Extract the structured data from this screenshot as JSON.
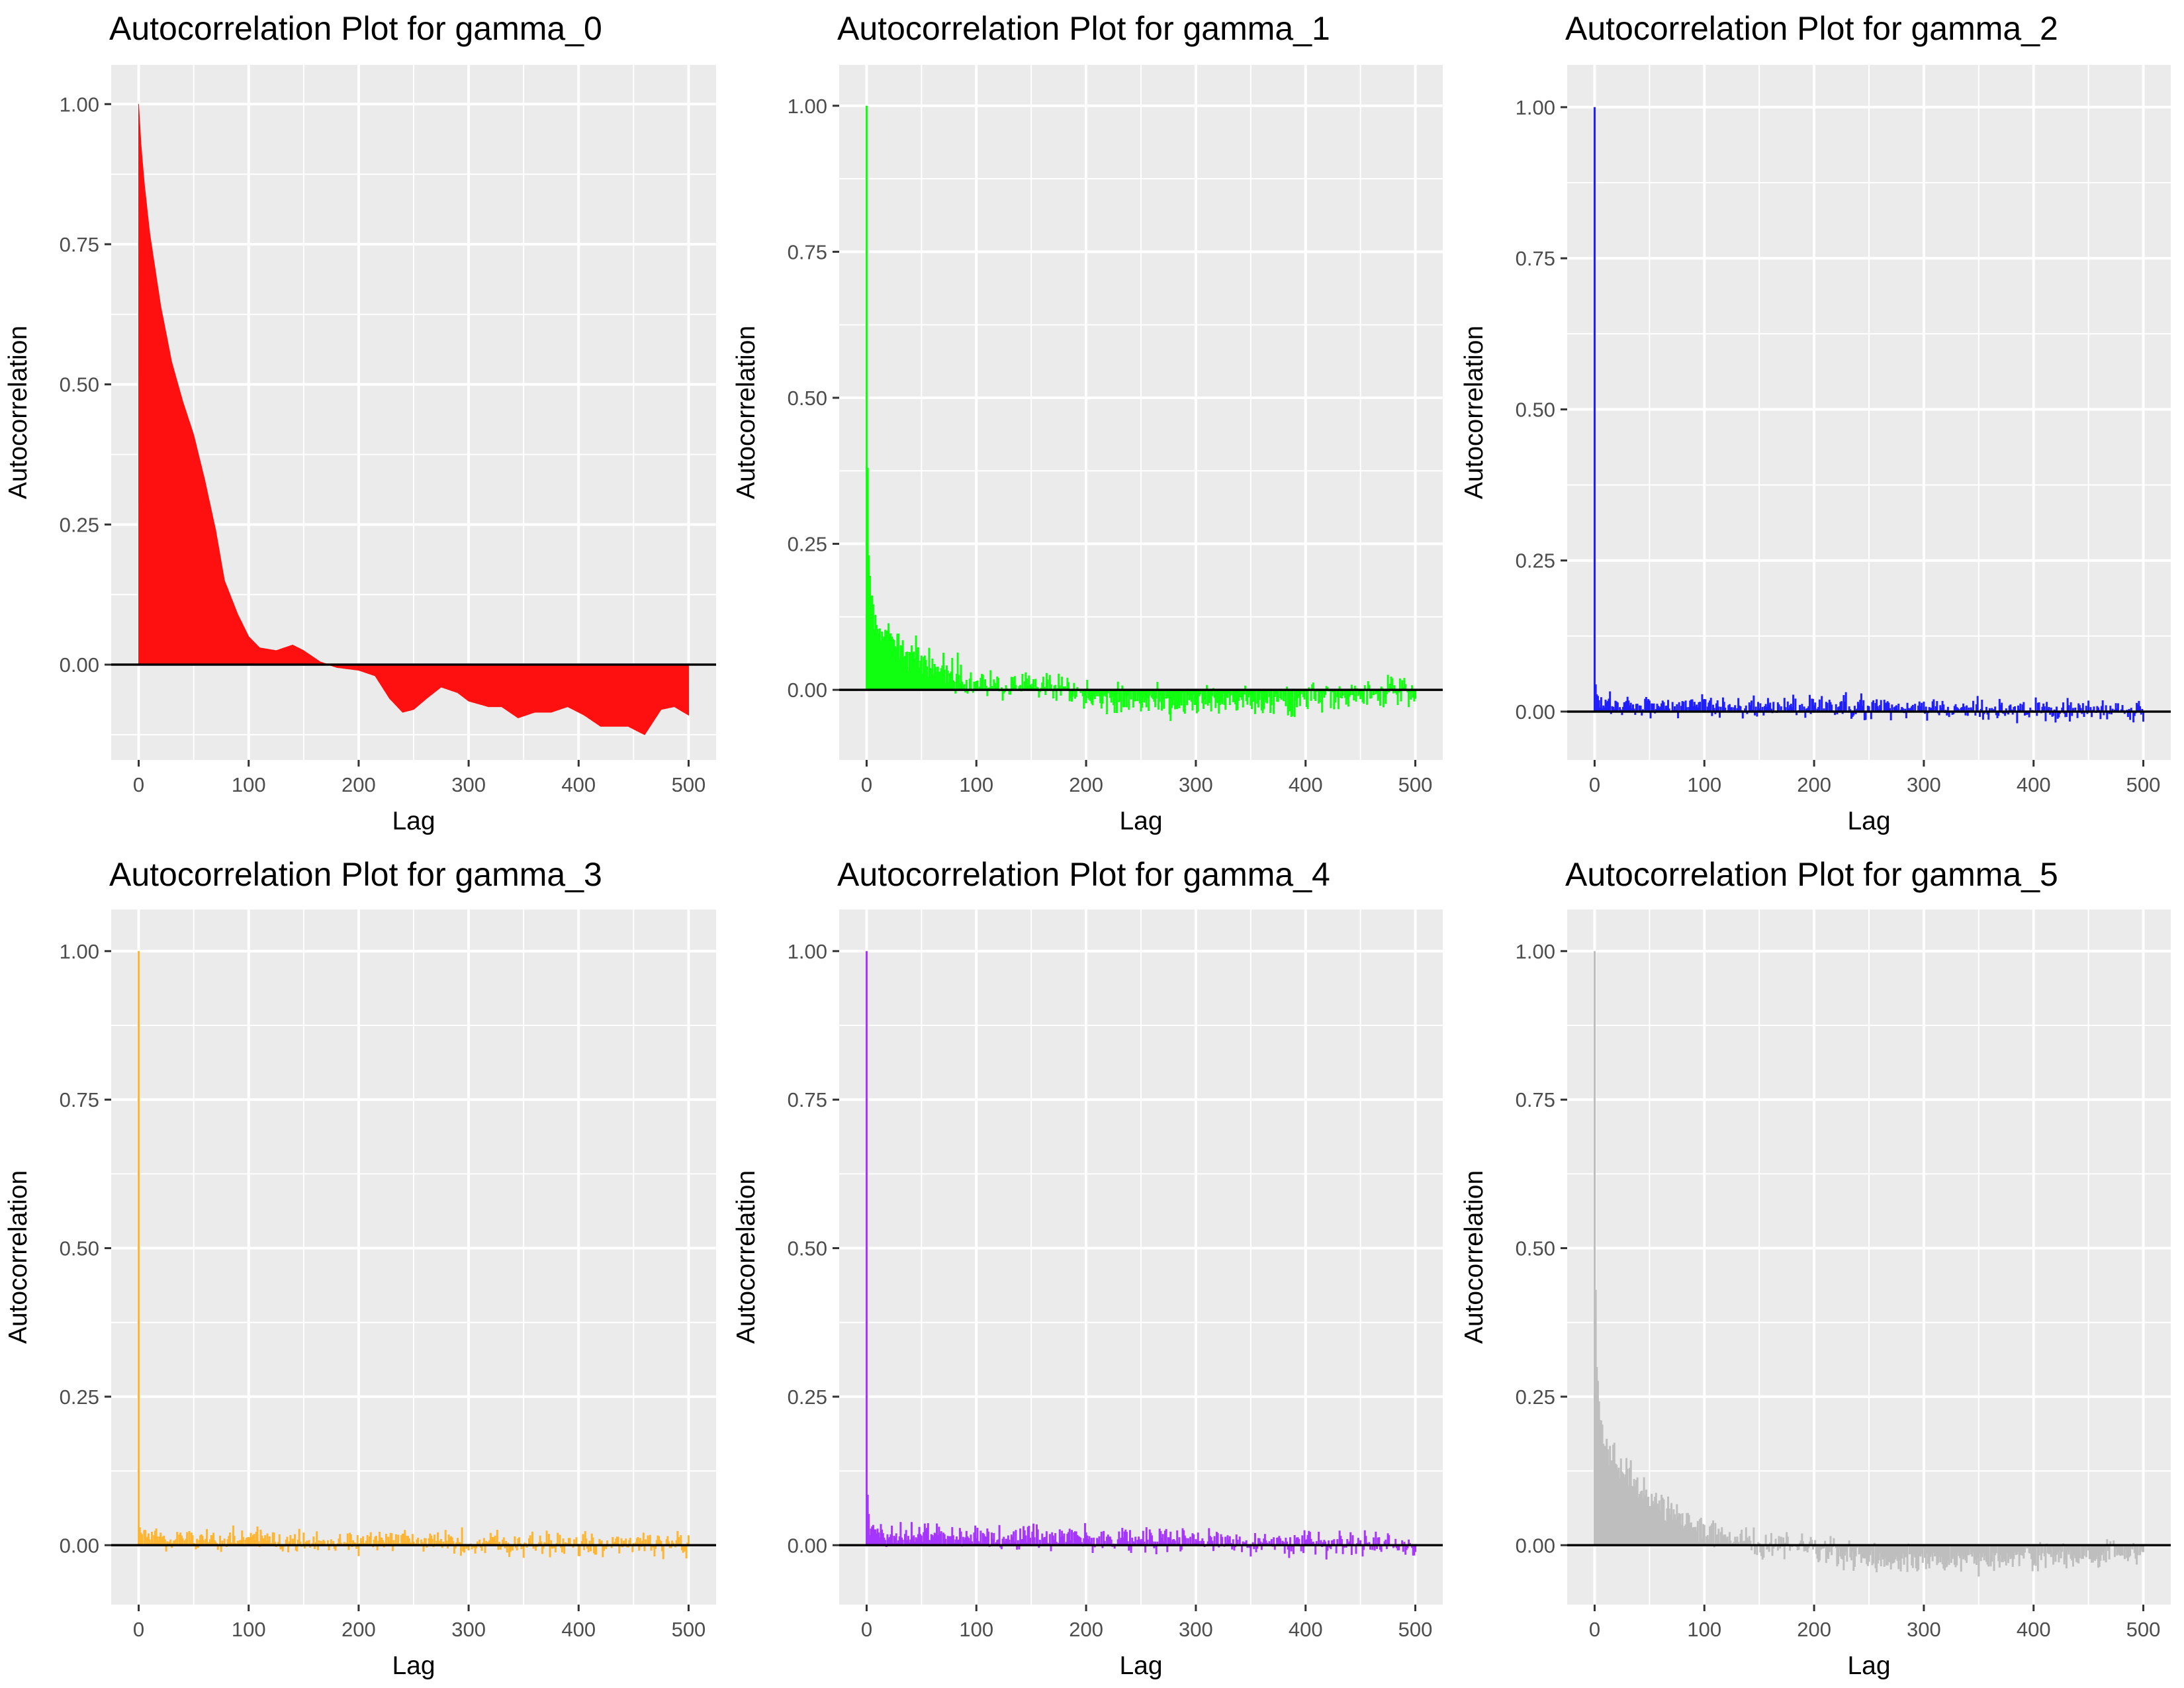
{
  "chart_data": [
    {
      "type": "bar",
      "title": "Autocorrelation Plot for gamma_0",
      "xlabel": "Lag",
      "ylabel": "Autocorrelation",
      "color": "#FF1010",
      "pattern": "smooth",
      "xlim": [
        -25,
        525
      ],
      "ylim": [
        -0.17,
        1.07
      ],
      "xticks": [
        0,
        100,
        200,
        300,
        400,
        500
      ],
      "yticks": [
        0,
        0.25,
        0.5,
        0.75,
        1
      ],
      "ytick_labels": [
        "0.00",
        "0.25",
        "0.50",
        "0.75",
        "1.00"
      ],
      "profile": [
        [
          0,
          1.0
        ],
        [
          2,
          0.93
        ],
        [
          5,
          0.86
        ],
        [
          10,
          0.77
        ],
        [
          20,
          0.64
        ],
        [
          30,
          0.54
        ],
        [
          40,
          0.47
        ],
        [
          50,
          0.41
        ],
        [
          60,
          0.33
        ],
        [
          70,
          0.24
        ],
        [
          78,
          0.15
        ],
        [
          90,
          0.09
        ],
        [
          100,
          0.05
        ],
        [
          110,
          0.03
        ],
        [
          125,
          0.025
        ],
        [
          140,
          0.035
        ],
        [
          150,
          0.025
        ],
        [
          165,
          0.005
        ],
        [
          180,
          -0.005
        ],
        [
          200,
          -0.01
        ],
        [
          215,
          -0.02
        ],
        [
          228,
          -0.06
        ],
        [
          240,
          -0.085
        ],
        [
          250,
          -0.08
        ],
        [
          262,
          -0.06
        ],
        [
          275,
          -0.04
        ],
        [
          290,
          -0.05
        ],
        [
          300,
          -0.065
        ],
        [
          318,
          -0.075
        ],
        [
          330,
          -0.075
        ],
        [
          345,
          -0.095
        ],
        [
          360,
          -0.085
        ],
        [
          375,
          -0.085
        ],
        [
          390,
          -0.075
        ],
        [
          405,
          -0.09
        ],
        [
          420,
          -0.11
        ],
        [
          432,
          -0.11
        ],
        [
          445,
          -0.11
        ],
        [
          460,
          -0.125
        ],
        [
          475,
          -0.08
        ],
        [
          487,
          -0.075
        ],
        [
          500,
          -0.09
        ]
      ]
    },
    {
      "type": "bar",
      "title": "Autocorrelation Plot for gamma_1",
      "xlabel": "Lag",
      "ylabel": "Autocorrelation",
      "color": "#10FF10",
      "pattern": "noisy",
      "noise": 0.04,
      "xlim": [
        -25,
        525
      ],
      "ylim": [
        -0.12,
        1.07
      ],
      "xticks": [
        0,
        100,
        200,
        300,
        400,
        500
      ],
      "yticks": [
        0,
        0.25,
        0.5,
        0.75,
        1
      ],
      "ytick_labels": [
        "0.00",
        "0.25",
        "0.50",
        "0.75",
        "1.00"
      ],
      "profile": [
        [
          0,
          1.0
        ],
        [
          1,
          0.38
        ],
        [
          2,
          0.23
        ],
        [
          4,
          0.15
        ],
        [
          8,
          0.11
        ],
        [
          20,
          0.085
        ],
        [
          40,
          0.065
        ],
        [
          60,
          0.045
        ],
        [
          80,
          0.03
        ],
        [
          100,
          0.015
        ],
        [
          150,
          0.005
        ],
        [
          200,
          -0.01
        ],
        [
          260,
          -0.02
        ],
        [
          330,
          -0.025
        ],
        [
          380,
          -0.02
        ],
        [
          440,
          -0.01
        ],
        [
          500,
          0.0
        ]
      ]
    },
    {
      "type": "bar",
      "title": "Autocorrelation Plot for gamma_2",
      "xlabel": "Lag",
      "ylabel": "Autocorrelation",
      "color": "#1E1EFF",
      "pattern": "spike",
      "noise": 0.028,
      "xlim": [
        -25,
        525
      ],
      "ylim": [
        -0.08,
        1.07
      ],
      "xticks": [
        0,
        100,
        200,
        300,
        400,
        500
      ],
      "yticks": [
        0,
        0.25,
        0.5,
        0.75,
        1
      ],
      "ytick_labels": [
        "0.00",
        "0.25",
        "0.50",
        "0.75",
        "1.00"
      ],
      "profile": [
        [
          0,
          1.0
        ],
        [
          1,
          0.045
        ],
        [
          3,
          0.012
        ],
        [
          500,
          0.0
        ]
      ]
    },
    {
      "type": "bar",
      "title": "Autocorrelation Plot for gamma_3",
      "xlabel": "Lag",
      "ylabel": "Autocorrelation",
      "color": "#FFB530",
      "pattern": "spike",
      "noise": 0.032,
      "xlim": [
        -25,
        525
      ],
      "ylim": [
        -0.1,
        1.07
      ],
      "xticks": [
        0,
        100,
        200,
        300,
        400,
        500
      ],
      "yticks": [
        0,
        0.25,
        0.5,
        0.75,
        1
      ],
      "ytick_labels": [
        "0.00",
        "0.25",
        "0.50",
        "0.75",
        "1.00"
      ],
      "profile": [
        [
          0,
          1.0
        ],
        [
          1,
          0.03
        ],
        [
          3,
          0.012
        ],
        [
          500,
          0.0
        ]
      ]
    },
    {
      "type": "bar",
      "title": "Autocorrelation Plot for gamma_4",
      "xlabel": "Lag",
      "ylabel": "Autocorrelation",
      "color": "#A535FF",
      "pattern": "spike",
      "noise": 0.032,
      "xlim": [
        -25,
        525
      ],
      "ylim": [
        -0.1,
        1.07
      ],
      "xticks": [
        0,
        100,
        200,
        300,
        400,
        500
      ],
      "yticks": [
        0,
        0.25,
        0.5,
        0.75,
        1
      ],
      "ytick_labels": [
        "0.00",
        "0.25",
        "0.50",
        "0.75",
        "1.00"
      ],
      "profile": [
        [
          0,
          1.0
        ],
        [
          1,
          0.085
        ],
        [
          3,
          0.02
        ],
        [
          500,
          0.0
        ]
      ]
    },
    {
      "type": "bar",
      "title": "Autocorrelation Plot for gamma_5",
      "xlabel": "Lag",
      "ylabel": "Autocorrelation",
      "color": "#BEBEBE",
      "pattern": "noisy",
      "noise": 0.035,
      "xlim": [
        -25,
        525
      ],
      "ylim": [
        -0.1,
        1.07
      ],
      "xticks": [
        0,
        100,
        200,
        300,
        400,
        500
      ],
      "yticks": [
        0,
        0.25,
        0.5,
        0.75,
        1
      ],
      "ytick_labels": [
        "0.00",
        "0.25",
        "0.50",
        "0.75",
        "1.00"
      ],
      "profile": [
        [
          0,
          1.0
        ],
        [
          1,
          0.43
        ],
        [
          2,
          0.3
        ],
        [
          5,
          0.2
        ],
        [
          10,
          0.17
        ],
        [
          20,
          0.14
        ],
        [
          40,
          0.1
        ],
        [
          60,
          0.07
        ],
        [
          80,
          0.045
        ],
        [
          100,
          0.025
        ],
        [
          150,
          0.0
        ],
        [
          200,
          -0.005
        ],
        [
          240,
          -0.02
        ],
        [
          300,
          -0.025
        ],
        [
          350,
          -0.025
        ],
        [
          400,
          -0.02
        ],
        [
          450,
          -0.02
        ],
        [
          500,
          -0.015
        ]
      ]
    }
  ]
}
